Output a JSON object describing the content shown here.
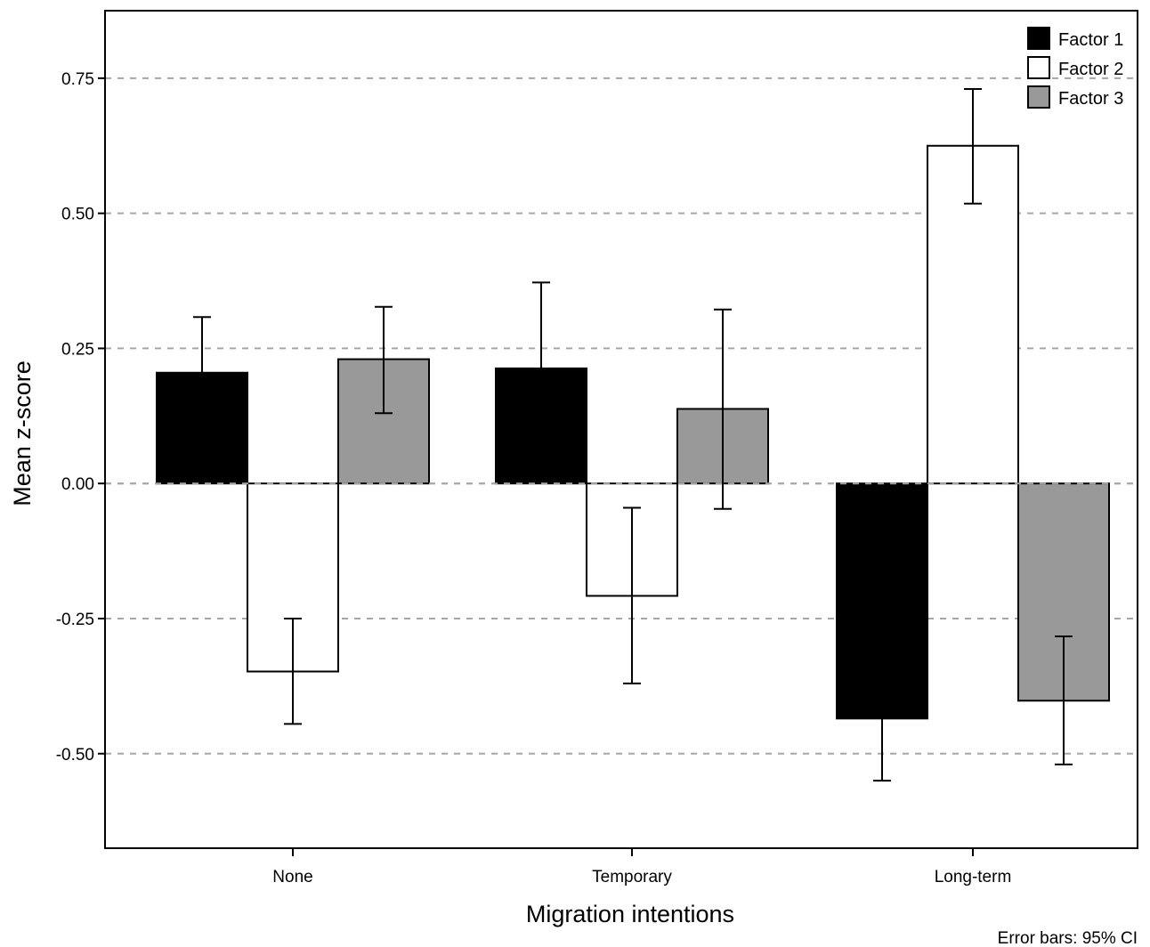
{
  "chart_data": {
    "type": "bar",
    "title": "",
    "xlabel": "Migration intentions",
    "ylabel": "Mean z-score",
    "note": "Error bars: 95% CI",
    "categories": [
      "None",
      "Temporary",
      "Long-term"
    ],
    "ylim": [
      -0.675,
      0.875
    ],
    "yticks": [
      0.75,
      0.5,
      0.25,
      0.0,
      -0.25,
      -0.5
    ],
    "ytick_labels": [
      "0.75",
      "0.50",
      "0.25",
      "0.00",
      "-0.25",
      "-0.50"
    ],
    "grid": "horizontal dashed",
    "legend_position": "top-right",
    "series": [
      {
        "name": "Factor 1",
        "color": "#000000",
        "values": [
          0.205,
          0.213,
          -0.435
        ],
        "ci_low": [
          0.13,
          0.04,
          -0.55
        ],
        "ci_high": [
          0.308,
          0.372,
          -0.31
        ]
      },
      {
        "name": "Factor 2",
        "color": "#ffffff",
        "values": [
          -0.348,
          -0.208,
          0.625
        ],
        "ci_low": [
          -0.445,
          -0.37,
          0.518
        ],
        "ci_high": [
          -0.25,
          -0.045,
          0.73
        ]
      },
      {
        "name": "Factor 3",
        "color": "#999999",
        "values": [
          0.23,
          0.138,
          -0.402
        ],
        "ci_low": [
          0.13,
          -0.047,
          -0.52
        ],
        "ci_high": [
          0.327,
          0.322,
          -0.283
        ]
      }
    ]
  }
}
